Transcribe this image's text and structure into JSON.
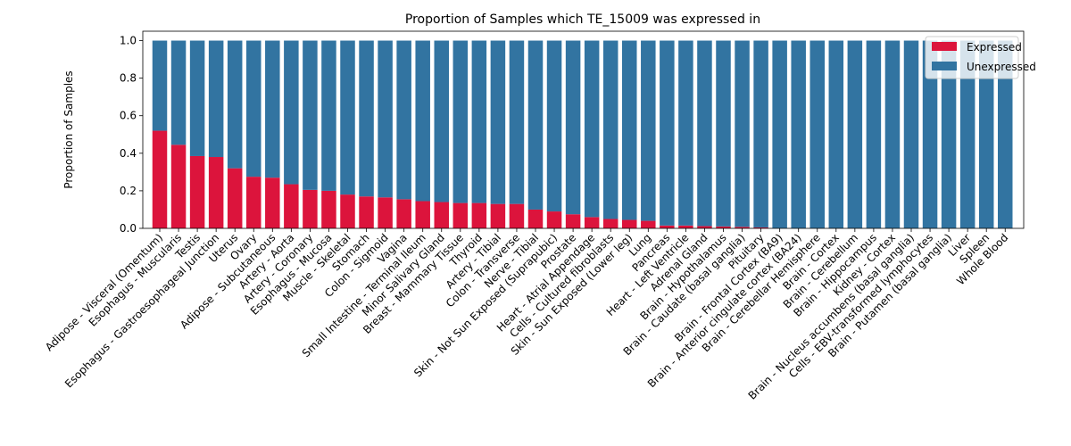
{
  "chart_data": {
    "type": "bar",
    "stacked": true,
    "title": "Proportion of Samples which TE_15009 was expressed in",
    "xlabel": "",
    "ylabel": "Proportion of Samples",
    "ylim": [
      0,
      1.05
    ],
    "yticks": [
      "0.0",
      "0.2",
      "0.4",
      "0.6",
      "0.8",
      "1.0"
    ],
    "grid": false,
    "legend_position": "top-right",
    "categories": [
      "Adipose - Visceral (Omentum)",
      "Esophagus - Muscularis",
      "Testis",
      "Esophagus - Gastroesophageal Junction",
      "Uterus",
      "Ovary",
      "Adipose - Subcutaneous",
      "Artery - Aorta",
      "Artery - Coronary",
      "Esophagus - Mucosa",
      "Muscle - Skeletal",
      "Stomach",
      "Colon - Sigmoid",
      "Vagina",
      "Small Intestine - Terminal Ileum",
      "Minor Salivary Gland",
      "Breast - Mammary Tissue",
      "Thyroid",
      "Artery - Tibial",
      "Colon - Transverse",
      "Nerve - Tibial",
      "Skin - Not Sun Exposed (Suprapubic)",
      "Prostate",
      "Heart - Atrial Appendage",
      "Cells - Cultured fibroblasts",
      "Skin - Sun Exposed (Lower leg)",
      "Lung",
      "Pancreas",
      "Heart - Left Ventricle",
      "Adrenal Gland",
      "Brain - Hypothalamus",
      "Brain - Caudate (basal ganglia)",
      "Pituitary",
      "Brain - Frontal Cortex (BA9)",
      "Brain - Anterior cingulate cortex (BA24)",
      "Brain - Cerebellar Hemisphere",
      "Brain - Cortex",
      "Brain - Cerebellum",
      "Brain - Hippocampus",
      "Kidney - Cortex",
      "Brain - Nucleus accumbens (basal ganglia)",
      "Cells - EBV-transformed lymphocytes",
      "Brain - Putamen (basal ganglia)",
      "Liver",
      "Spleen",
      "Whole Blood"
    ],
    "series": [
      {
        "name": "Expressed",
        "color": "#dc143c",
        "values": [
          0.52,
          0.445,
          0.385,
          0.38,
          0.32,
          0.275,
          0.27,
          0.235,
          0.205,
          0.2,
          0.18,
          0.17,
          0.165,
          0.155,
          0.145,
          0.14,
          0.135,
          0.135,
          0.13,
          0.13,
          0.1,
          0.09,
          0.075,
          0.06,
          0.05,
          0.045,
          0.04,
          0.015,
          0.015,
          0.012,
          0.01,
          0.008,
          0.005,
          0,
          0,
          0,
          0,
          0,
          0,
          0,
          0,
          0,
          0,
          0,
          0,
          0
        ]
      },
      {
        "name": "Unexpressed",
        "color": "#3274a1",
        "values": [
          0.48,
          0.555,
          0.615,
          0.62,
          0.68,
          0.725,
          0.73,
          0.765,
          0.795,
          0.8,
          0.82,
          0.83,
          0.835,
          0.845,
          0.855,
          0.86,
          0.865,
          0.865,
          0.87,
          0.87,
          0.9,
          0.91,
          0.925,
          0.94,
          0.95,
          0.955,
          0.96,
          0.985,
          0.985,
          0.988,
          0.99,
          0.992,
          0.995,
          1,
          1,
          1,
          1,
          1,
          1,
          1,
          1,
          1,
          1,
          1,
          1,
          1
        ]
      }
    ]
  }
}
